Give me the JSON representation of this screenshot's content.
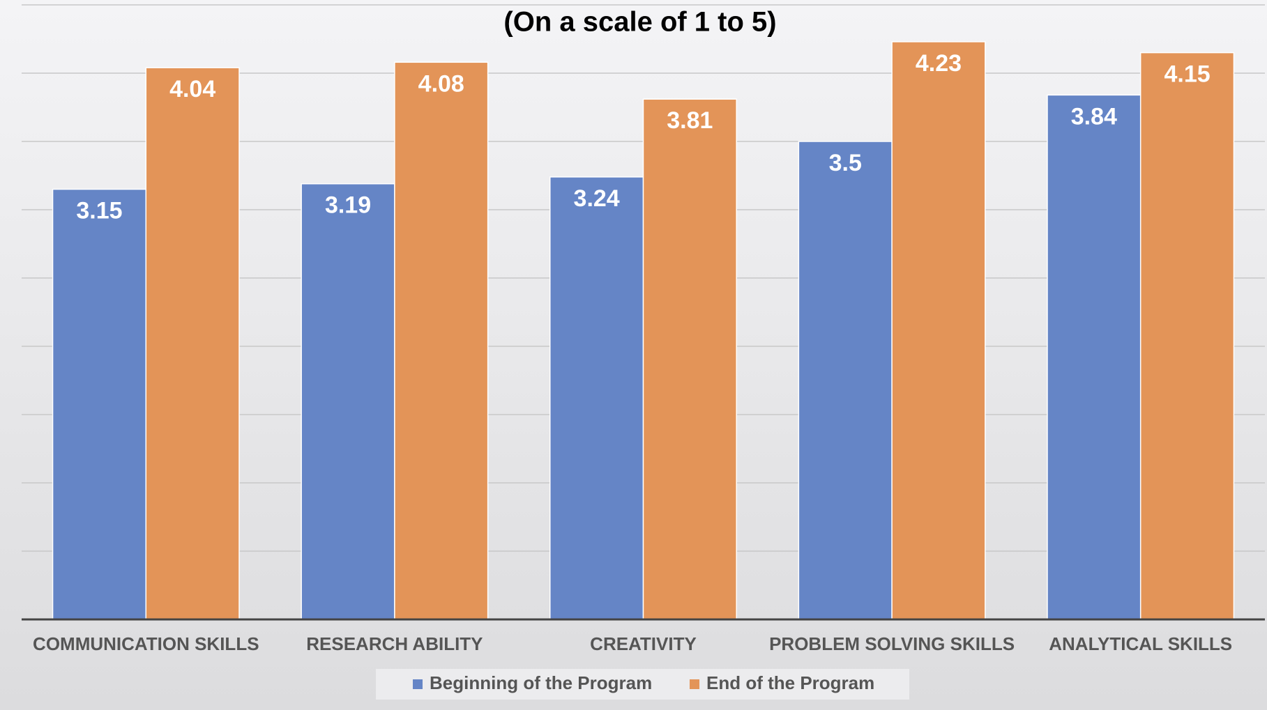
{
  "chart_data": {
    "type": "bar",
    "title": "(On a scale of 1 to 5)",
    "categories": [
      "COMMUNICATION SKILLS",
      "RESEARCH ABILITY",
      "CREATIVITY",
      "PROBLEM SOLVING SKILLS",
      "ANALYTICAL SKILLS"
    ],
    "series": [
      {
        "name": "Beginning of the Program",
        "color": "#6585c6",
        "values": [
          3.15,
          3.19,
          3.24,
          3.5,
          3.84
        ]
      },
      {
        "name": "End of the Program",
        "color": "#e39458",
        "values": [
          4.04,
          4.08,
          3.81,
          4.23,
          4.15
        ]
      }
    ],
    "ylim": [
      0,
      4.5
    ],
    "yticks": [
      0,
      0.5,
      1,
      1.5,
      2,
      2.5,
      3,
      3.5,
      4,
      4.5
    ],
    "grid": true,
    "legend": "bottom"
  }
}
